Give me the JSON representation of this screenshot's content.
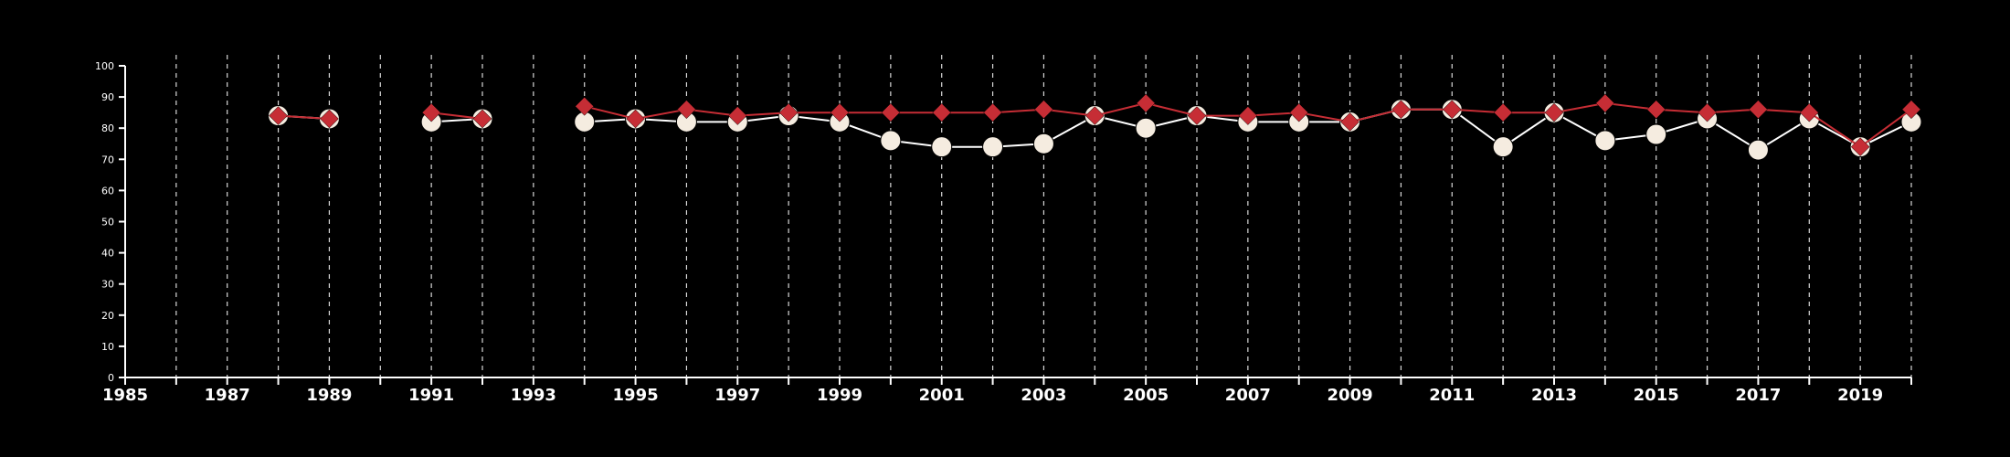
{
  "chart_data": {
    "type": "line",
    "title": "",
    "xlabel": "",
    "ylabel": "",
    "xlim": [
      1985,
      2020
    ],
    "ylim": [
      0,
      100
    ],
    "y_ticks": [
      0,
      10,
      20,
      30,
      40,
      50,
      60,
      70,
      80,
      90,
      100
    ],
    "x_ticks": [
      1985,
      1987,
      1989,
      1991,
      1993,
      1995,
      1997,
      1999,
      2001,
      2003,
      2005,
      2007,
      2009,
      2011,
      2013,
      2015,
      2017,
      2019
    ],
    "vertical_gridlines": "dashed, every year",
    "legend": "none",
    "series": [
      {
        "marker": "circle",
        "color": "#f5ece0",
        "line_color": "#ffffff",
        "points": [
          [
            1988,
            84
          ],
          [
            1989,
            83
          ],
          [
            1991,
            82
          ],
          [
            1992,
            83
          ],
          [
            1994,
            82
          ],
          [
            1995,
            83
          ],
          [
            1996,
            82
          ],
          [
            1997,
            82
          ],
          [
            1998,
            84
          ],
          [
            1999,
            82
          ],
          [
            2000,
            76
          ],
          [
            2001,
            74
          ],
          [
            2002,
            74
          ],
          [
            2003,
            75
          ],
          [
            2004,
            84
          ],
          [
            2005,
            80
          ],
          [
            2006,
            84
          ],
          [
            2007,
            82
          ],
          [
            2008,
            82
          ],
          [
            2009,
            82
          ],
          [
            2010,
            86
          ],
          [
            2011,
            86
          ],
          [
            2012,
            74
          ],
          [
            2013,
            85
          ],
          [
            2014,
            76
          ],
          [
            2015,
            78
          ],
          [
            2016,
            83
          ],
          [
            2017,
            73
          ],
          [
            2018,
            83
          ],
          [
            2019,
            74
          ],
          [
            2020,
            82
          ]
        ]
      },
      {
        "marker": "diamond",
        "color": "#c62d35",
        "line_color": "#c62d35",
        "points": [
          [
            1988,
            84
          ],
          [
            1989,
            83
          ],
          [
            1991,
            85
          ],
          [
            1992,
            83
          ],
          [
            1994,
            87
          ],
          [
            1995,
            83
          ],
          [
            1996,
            86
          ],
          [
            1997,
            84
          ],
          [
            1998,
            85
          ],
          [
            1999,
            85
          ],
          [
            2000,
            85
          ],
          [
            2001,
            85
          ],
          [
            2002,
            85
          ],
          [
            2003,
            86
          ],
          [
            2004,
            84
          ],
          [
            2005,
            88
          ],
          [
            2006,
            84
          ],
          [
            2007,
            84
          ],
          [
            2008,
            85
          ],
          [
            2009,
            82
          ],
          [
            2010,
            86
          ],
          [
            2011,
            86
          ],
          [
            2012,
            85
          ],
          [
            2013,
            85
          ],
          [
            2014,
            88
          ],
          [
            2015,
            86
          ],
          [
            2016,
            85
          ],
          [
            2017,
            86
          ],
          [
            2018,
            85
          ],
          [
            2019,
            74
          ],
          [
            2020,
            86
          ]
        ]
      }
    ]
  }
}
